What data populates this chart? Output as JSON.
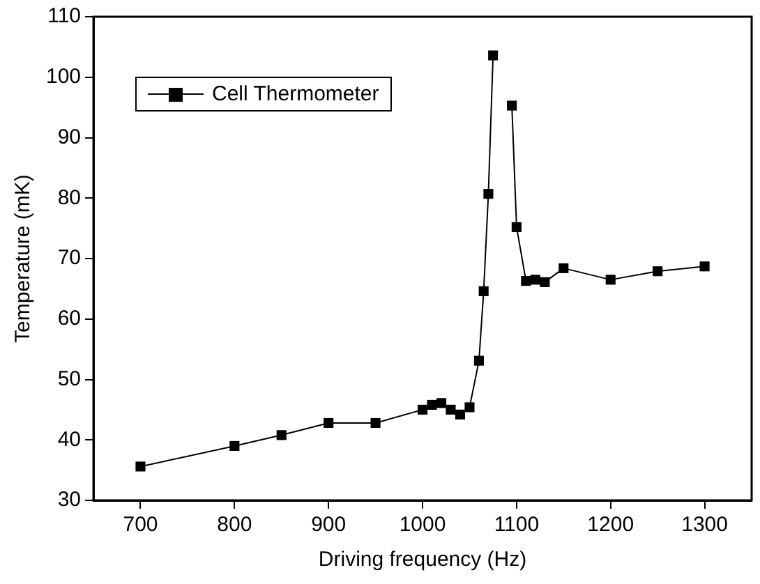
{
  "chart_data": {
    "type": "line",
    "xlabel": "Driving frequency (Hz)",
    "ylabel": "Temperature (mK)",
    "x": [
      700,
      800,
      850,
      900,
      950,
      1000,
      1010,
      1020,
      1030,
      1040,
      1050,
      1060,
      1065,
      1070,
      1075,
      1085,
      1095,
      1100,
      1110,
      1120,
      1130,
      1150,
      1200,
      1250,
      1300
    ],
    "series": [
      {
        "name": "Cell Thermometer",
        "color": "#000000",
        "values": [
          35.6,
          39.0,
          40.8,
          42.8,
          42.8,
          45.0,
          45.8,
          46.1,
          45.0,
          44.2,
          45.4,
          53.1,
          64.6,
          80.7,
          103.6,
          null,
          95.3,
          75.2,
          66.3,
          66.5,
          66.1,
          68.4,
          66.5,
          67.9,
          68.7
        ]
      }
    ],
    "xlim": [
      650,
      1350
    ],
    "xticks": [
      700,
      800,
      900,
      1000,
      1100,
      1200,
      1300
    ],
    "ylim": [
      30,
      110
    ],
    "yticks": [
      30,
      40,
      50,
      60,
      70,
      80,
      90,
      100,
      110
    ],
    "grid": false,
    "legend": "top left",
    "marker": "square",
    "line_style": "solid"
  }
}
